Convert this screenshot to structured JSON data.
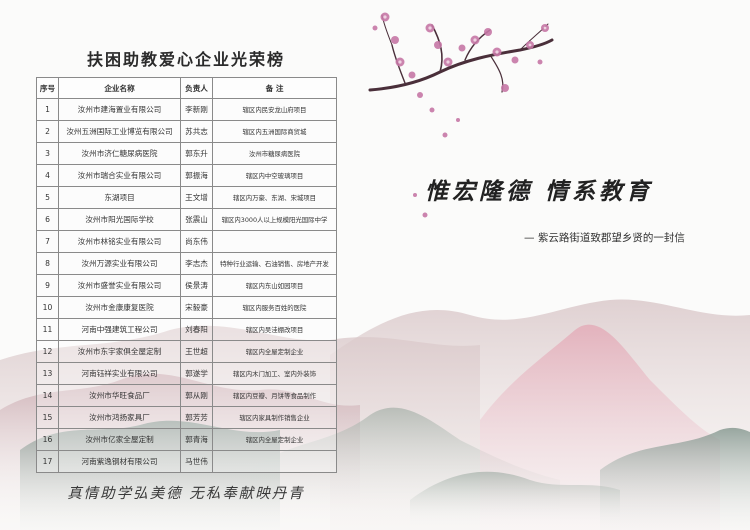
{
  "title": "扶困助教爱心企业光荣榜",
  "table": {
    "headers": [
      "序号",
      "企业名称",
      "负责人",
      "备 注"
    ],
    "rows": [
      [
        "1",
        "汝州市建海置业有限公司",
        "李新刚",
        "辖区内民安龙山府项目"
      ],
      [
        "2",
        "汝州五洲国际工业博览有限公司",
        "苏共志",
        "辖区内五洲国际商贸城"
      ],
      [
        "3",
        "汝州市济仁糖尿病医院",
        "郭东升",
        "汝州市糖尿病医院"
      ],
      [
        "4",
        "汝州市瑞合实业有限公司",
        "郭振海",
        "辖区内中空玻璃项目"
      ],
      [
        "5",
        "东湖项目",
        "王文增",
        "辖区内万豪、东湖、宋城项目"
      ],
      [
        "6",
        "汝州市阳光国际学校",
        "张震山",
        "辖区内3000人以上规模阳光国际中学"
      ],
      [
        "7",
        "汝州市林铭实业有限公司",
        "尚东伟",
        ""
      ],
      [
        "8",
        "汝州万源实业有限公司",
        "李志杰",
        "特种行业运输、石油销售、房地产开发"
      ],
      [
        "9",
        "汝州市盛誉实业有限公司",
        "侯景涛",
        "辖区内东山如园项目"
      ],
      [
        "10",
        "汝州市金康康复医院",
        "宋毅豪",
        "辖区内服务百姓的医院"
      ],
      [
        "11",
        "河南中强建筑工程公司",
        "刘春阳",
        "辖区内吴洼棚改项目"
      ],
      [
        "12",
        "汝州市东宇家俱全屋定制",
        "王世超",
        "辖区内全屋定制企业"
      ],
      [
        "13",
        "河南钰祥实业有限公司",
        "郭遂学",
        "辖区内木门加工、室内外装饰"
      ],
      [
        "14",
        "汝州市华旺食品厂",
        "郭从刚",
        "辖区内豆瓣、月饼等食品制作"
      ],
      [
        "15",
        "汝州市鸿扬家具厂",
        "郭芳芳",
        "辖区内家具制作销售企业"
      ],
      [
        "16",
        "汝州市亿家全屋定制",
        "郭青海",
        "辖区内全屋定制企业"
      ],
      [
        "17",
        "河南紫逸钢材有限公司",
        "马世伟",
        ""
      ]
    ]
  },
  "slogan_left": "真情助学弘美德  无私奉献映丹青",
  "slogan_main": "惟宏隆德  情系教育",
  "subtitle": "— 紫云路街道致郡望乡贤的一封信",
  "colors": {
    "blossom": "#c678a6",
    "branch": "#4a2f3a",
    "mountain_pink": "#d9a3b0",
    "mountain_green": "#7f9b8e"
  }
}
